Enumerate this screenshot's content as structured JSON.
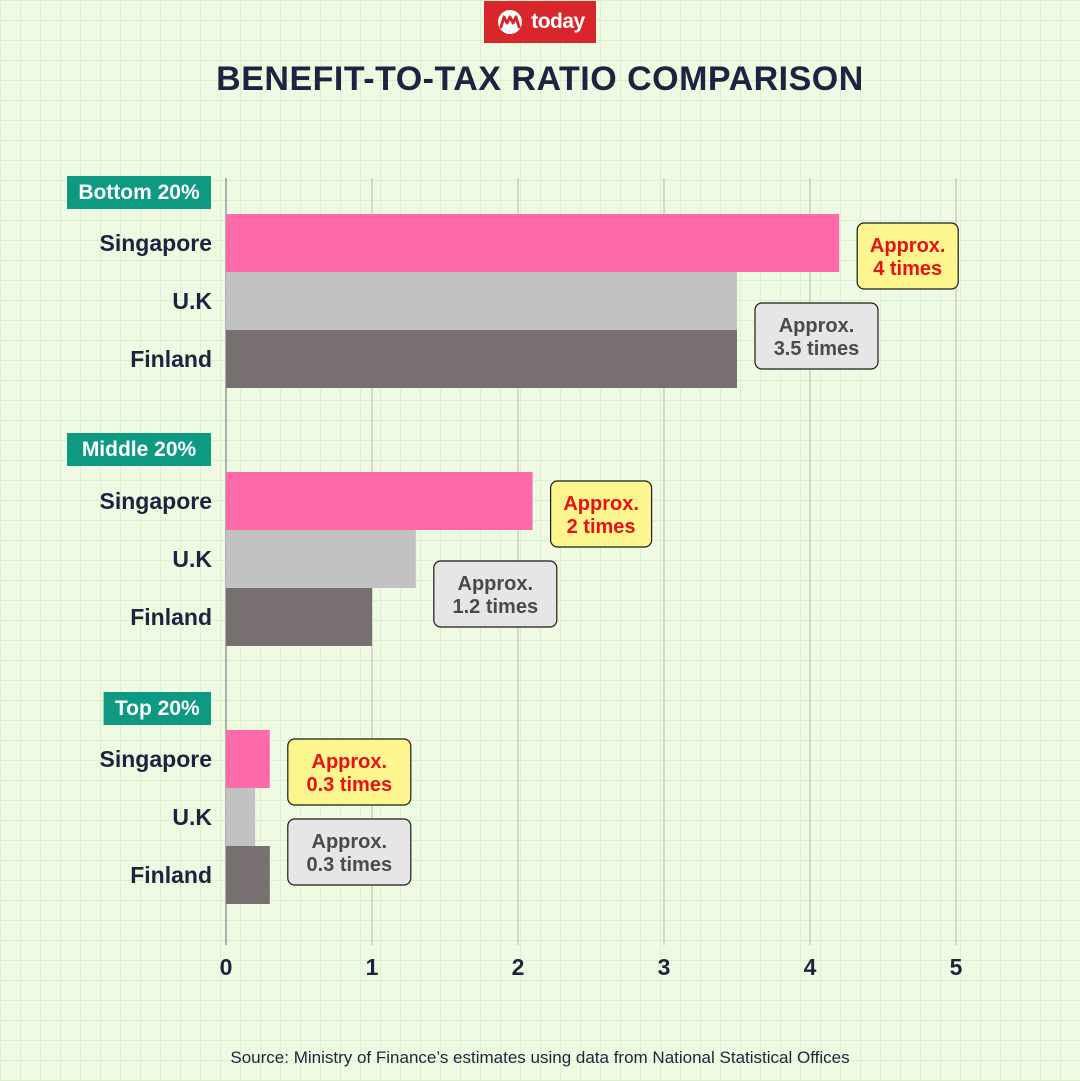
{
  "brand": {
    "logo_text": "today",
    "color": "#d9262d"
  },
  "chart_data": {
    "type": "bar",
    "title": "BENEFIT-TO-TAX RATIO COMPARISON",
    "orientation": "horizontal",
    "xlim": [
      0,
      5
    ],
    "x_ticks": [
      "0",
      "1",
      "2",
      "3",
      "4",
      "5"
    ],
    "grid": true,
    "groups": [
      {
        "label": "Bottom 20%",
        "bars": [
          {
            "category": "Singapore",
            "value": 4.2
          },
          {
            "category": "U.K",
            "value": 3.5
          },
          {
            "category": "Finland",
            "value": 3.5
          }
        ],
        "annotations": [
          {
            "text": "Approx.\n4 times",
            "style": "highlight"
          },
          {
            "text": "Approx.\n3.5 times",
            "style": "neutral"
          }
        ]
      },
      {
        "label": "Middle 20%",
        "bars": [
          {
            "category": "Singapore",
            "value": 2.1
          },
          {
            "category": "U.K",
            "value": 1.3
          },
          {
            "category": "Finland",
            "value": 1.0
          }
        ],
        "annotations": [
          {
            "text": "Approx.\n2 times",
            "style": "highlight"
          },
          {
            "text": "Approx.\n1.2 times",
            "style": "neutral"
          }
        ]
      },
      {
        "label": "Top 20%",
        "bars": [
          {
            "category": "Singapore",
            "value": 0.3
          },
          {
            "category": "U.K",
            "value": 0.2
          },
          {
            "category": "Finland",
            "value": 0.3
          }
        ],
        "annotations": [
          {
            "text": "Approx.\n0.3 times",
            "style": "highlight"
          },
          {
            "text": "Approx.\n0.3 times",
            "style": "neutral"
          }
        ]
      }
    ],
    "colors": {
      "Singapore": "#ff6aab",
      "U.K": "#c2c2c2",
      "Finland": "#787070",
      "group_label": "#0e9a82",
      "highlight_box": "#fdf68e",
      "highlight_text": "#e8111a",
      "neutral_box": "#e6e6e6",
      "neutral_text": "#4a4a4a"
    }
  },
  "footer": {
    "source": "Source: Ministry of Finance’s estimates using data from National Statistical Offices"
  }
}
